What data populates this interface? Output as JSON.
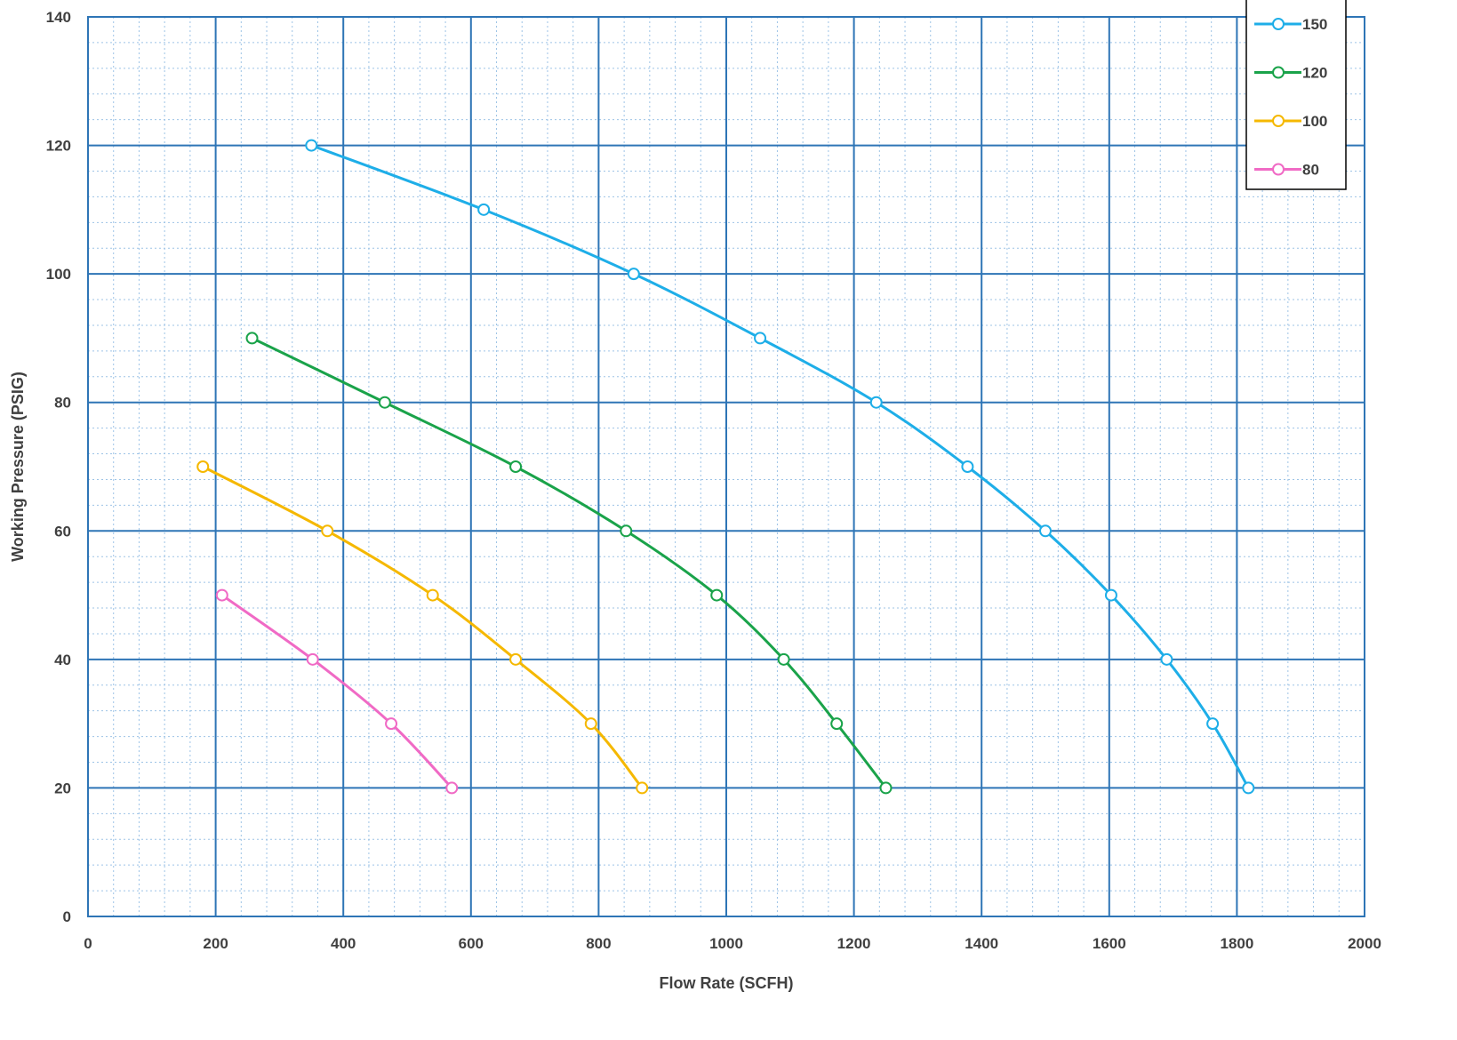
{
  "chart_data": {
    "type": "line",
    "title": "",
    "xlabel": "Flow Rate (SCFH)",
    "ylabel": "Working Pressure (PSIG)",
    "xlim": [
      0,
      2000
    ],
    "ylim": [
      0,
      140
    ],
    "x_major_step": 200,
    "x_minor_step": 40,
    "y_major_step": 20,
    "y_minor_step": 4,
    "x_ticks": [
      "0",
      "200",
      "400",
      "600",
      "800",
      "1000",
      "1200",
      "1400",
      "1600",
      "1800",
      "2000"
    ],
    "y_ticks": [
      "0",
      "20",
      "40",
      "60",
      "80",
      "100",
      "120",
      "140"
    ],
    "grid": true,
    "legend_position": "top-right",
    "marker": "open-circle",
    "smooth": true,
    "colors": {
      "major_grid": "#2e75b6",
      "minor_grid": "#9dc3e6",
      "axis_text": "#404040"
    },
    "series": [
      {
        "name": "150",
        "color": "#1eaee8",
        "points": [
          [
            350,
            120
          ],
          [
            620,
            110
          ],
          [
            855,
            100
          ],
          [
            1053,
            90
          ],
          [
            1235,
            80
          ],
          [
            1378,
            70
          ],
          [
            1500,
            60
          ],
          [
            1603,
            50
          ],
          [
            1690,
            40
          ],
          [
            1762,
            30
          ],
          [
            1818,
            20
          ]
        ]
      },
      {
        "name": "120",
        "color": "#1aa34a",
        "points": [
          [
            257,
            90
          ],
          [
            465,
            80
          ],
          [
            670,
            70
          ],
          [
            843,
            60
          ],
          [
            985,
            50
          ],
          [
            1090,
            40
          ],
          [
            1173,
            30
          ],
          [
            1250,
            20
          ]
        ]
      },
      {
        "name": "100",
        "color": "#f5b800",
        "points": [
          [
            180,
            70
          ],
          [
            375,
            60
          ],
          [
            540,
            50
          ],
          [
            670,
            40
          ],
          [
            788,
            30
          ],
          [
            868,
            20
          ]
        ]
      },
      {
        "name": "80",
        "color": "#f06ac5",
        "points": [
          [
            210,
            50
          ],
          [
            352,
            40
          ],
          [
            475,
            30
          ],
          [
            570,
            20
          ]
        ]
      }
    ]
  }
}
